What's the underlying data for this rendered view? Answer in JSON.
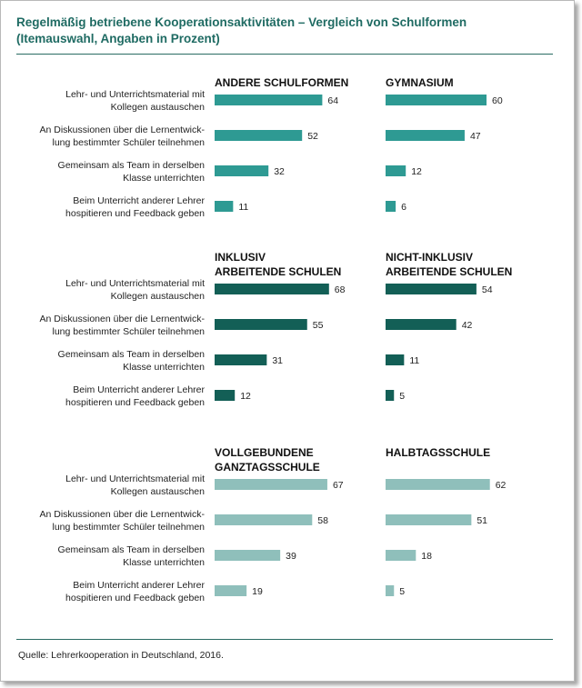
{
  "title_line1": "Regelmäßig betriebene Kooperationsaktivitäten – Vergleich von Schulformen",
  "title_line2": "(Itemauswahl, Angaben in Prozent)",
  "source": "Quelle: Lehrerkooperation in Deutschland, 2016.",
  "colors": {
    "band1": "#2e9a93",
    "band2": "#135f56",
    "band3": "#8fbfbb",
    "title": "#1f6b63"
  },
  "chart_data": [
    {
      "type": "bar",
      "orientation": "horizontal",
      "title_left": [
        "ANDERE SCHULFORMEN"
      ],
      "title_right": [
        "GYMNASIUM"
      ],
      "categories": [
        [
          "Lehr- und Unterrichtsmaterial mit",
          "Kollegen austauschen"
        ],
        [
          "An Diskussionen über die Lernentwick-",
          "lung bestimmter Schüler teilnehmen"
        ],
        [
          "Gemeinsam als Team in derselben",
          "Klasse unterrichten"
        ],
        [
          "Beim Unterricht anderer Lehrer",
          "hospitieren und Feedback geben"
        ]
      ],
      "series": [
        {
          "name": "ANDERE SCHULFORMEN",
          "values": [
            64,
            52,
            32,
            11
          ]
        },
        {
          "name": "GYMNASIUM",
          "values": [
            60,
            47,
            12,
            6
          ]
        }
      ],
      "color": "#2e9a93"
    },
    {
      "type": "bar",
      "orientation": "horizontal",
      "title_left": [
        "INKLUSIV",
        "ARBEITENDE SCHULEN"
      ],
      "title_right": [
        "NICHT-INKLUSIV",
        "ARBEITENDE SCHULEN"
      ],
      "categories": [
        [
          "Lehr- und Unterrichtsmaterial mit",
          "Kollegen austauschen"
        ],
        [
          "An Diskussionen über die Lernentwick-",
          "lung bestimmter Schüler teilnehmen"
        ],
        [
          "Gemeinsam als Team in derselben",
          "Klasse unterrichten"
        ],
        [
          "Beim Unterricht anderer Lehrer",
          "hospitieren und Feedback geben"
        ]
      ],
      "series": [
        {
          "name": "INKLUSIV ARBEITENDE SCHULEN",
          "values": [
            68,
            55,
            31,
            12
          ]
        },
        {
          "name": "NICHT-INKLUSIV ARBEITENDE SCHULEN",
          "values": [
            54,
            42,
            11,
            5
          ]
        }
      ],
      "color": "#135f56"
    },
    {
      "type": "bar",
      "orientation": "horizontal",
      "title_left": [
        "VOLLGEBUNDENE",
        "GANZTAGSSCHULE"
      ],
      "title_right": [
        "HALBTAGSSCHULE"
      ],
      "categories": [
        [
          "Lehr- und Unterrichtsmaterial mit",
          "Kollegen austauschen"
        ],
        [
          "An Diskussionen über die Lernentwick-",
          "lung bestimmter Schüler teilnehmen"
        ],
        [
          "Gemeinsam als Team in derselben",
          "Klasse unterrichten"
        ],
        [
          "Beim Unterricht anderer Lehrer",
          "hospitieren und Feedback geben"
        ]
      ],
      "series": [
        {
          "name": "VOLLGEBUNDENE GANZTAGSSCHULE",
          "values": [
            67,
            58,
            39,
            19
          ]
        },
        {
          "name": "HALBTAGSSCHULE",
          "values": [
            62,
            51,
            18,
            5
          ]
        }
      ],
      "color": "#8fbfbb"
    }
  ]
}
